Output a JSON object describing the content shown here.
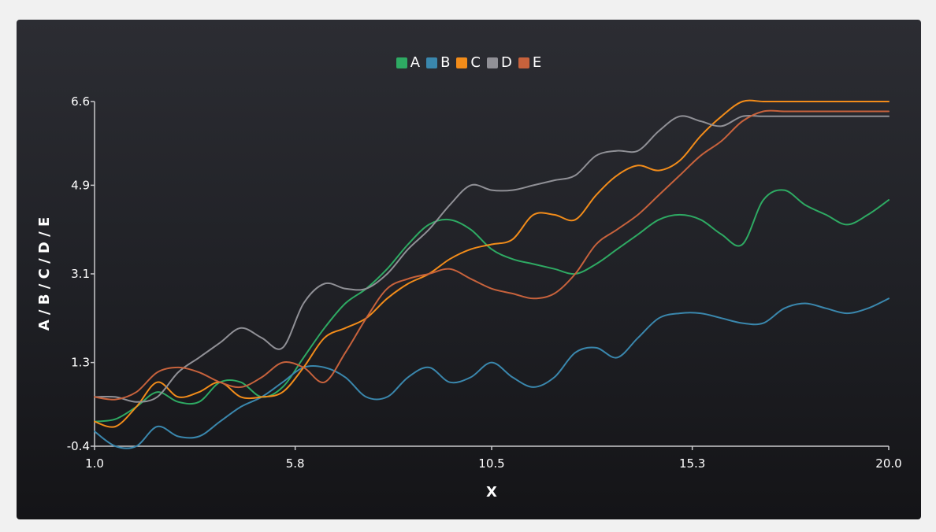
{
  "chart_data": {
    "type": "line",
    "title": "",
    "xlabel": "X",
    "ylabel": "A / B / C / D / E",
    "xlim": [
      1.0,
      20.0
    ],
    "ylim": [
      -0.4,
      6.6
    ],
    "x_ticks": [
      "1.0",
      "5.8",
      "10.5",
      "15.3",
      "20.0"
    ],
    "y_ticks": [
      "-0.4",
      "1.3",
      "3.1",
      "4.9",
      "6.6"
    ],
    "x": [
      1.0,
      1.5,
      2.0,
      2.5,
      3.0,
      3.5,
      4.0,
      4.5,
      5.0,
      5.5,
      6.0,
      6.5,
      7.0,
      7.5,
      8.0,
      8.5,
      9.0,
      9.5,
      10.0,
      10.5,
      11.0,
      11.5,
      12.0,
      12.5,
      13.0,
      13.5,
      14.0,
      14.5,
      15.0,
      15.5,
      16.0,
      16.5,
      17.0,
      17.5,
      18.0,
      18.5,
      19.0,
      19.5,
      20.0
    ],
    "legend": "top-center",
    "grid": false,
    "series": [
      {
        "name": "A",
        "color": "#2eaa63",
        "values": [
          0.1,
          0.15,
          0.4,
          0.7,
          0.5,
          0.5,
          0.9,
          0.9,
          0.6,
          0.8,
          1.4,
          2.0,
          2.5,
          2.8,
          3.2,
          3.7,
          4.1,
          4.2,
          4.0,
          3.6,
          3.4,
          3.3,
          3.2,
          3.1,
          3.3,
          3.6,
          3.9,
          4.2,
          4.3,
          4.2,
          3.9,
          3.7,
          4.6,
          4.8,
          4.5,
          4.3,
          4.1,
          4.3,
          4.6
        ]
      },
      {
        "name": "B",
        "color": "#3a87ad",
        "values": [
          -0.1,
          -0.4,
          -0.4,
          0.0,
          -0.2,
          -0.2,
          0.1,
          0.4,
          0.6,
          0.9,
          1.2,
          1.2,
          1.0,
          0.6,
          0.6,
          1.0,
          1.2,
          0.9,
          1.0,
          1.3,
          1.0,
          0.8,
          1.0,
          1.5,
          1.6,
          1.4,
          1.8,
          2.2,
          2.3,
          2.3,
          2.2,
          2.1,
          2.1,
          2.4,
          2.5,
          2.4,
          2.3,
          2.4,
          2.6
        ]
      },
      {
        "name": "C",
        "color": "#f28c1a",
        "values": [
          0.1,
          0.0,
          0.4,
          0.9,
          0.6,
          0.7,
          0.9,
          0.6,
          0.6,
          0.7,
          1.2,
          1.8,
          2.0,
          2.2,
          2.6,
          2.9,
          3.1,
          3.4,
          3.6,
          3.7,
          3.8,
          4.3,
          4.3,
          4.2,
          4.7,
          5.1,
          5.3,
          5.2,
          5.4,
          5.9,
          6.3,
          6.6,
          6.6,
          6.6,
          6.6,
          6.6,
          6.6,
          6.6,
          6.6
        ]
      },
      {
        "name": "D",
        "color": "#909096",
        "values": [
          0.6,
          0.6,
          0.5,
          0.6,
          1.1,
          1.4,
          1.7,
          2.0,
          1.8,
          1.6,
          2.5,
          2.9,
          2.8,
          2.8,
          3.1,
          3.6,
          4.0,
          4.5,
          4.9,
          4.8,
          4.8,
          4.9,
          5.0,
          5.1,
          5.5,
          5.6,
          5.6,
          6.0,
          6.3,
          6.2,
          6.1,
          6.3,
          6.3,
          6.3,
          6.3,
          6.3,
          6.3,
          6.3,
          6.3
        ]
      },
      {
        "name": "E",
        "color": "#c7623c",
        "values": [
          0.6,
          0.55,
          0.7,
          1.1,
          1.2,
          1.1,
          0.9,
          0.8,
          1.0,
          1.3,
          1.2,
          0.9,
          1.5,
          2.2,
          2.8,
          3.0,
          3.1,
          3.2,
          3.0,
          2.8,
          2.7,
          2.6,
          2.7,
          3.1,
          3.7,
          4.0,
          4.3,
          4.7,
          5.1,
          5.5,
          5.8,
          6.2,
          6.4,
          6.4,
          6.4,
          6.4,
          6.4,
          6.4,
          6.4
        ]
      }
    ]
  }
}
